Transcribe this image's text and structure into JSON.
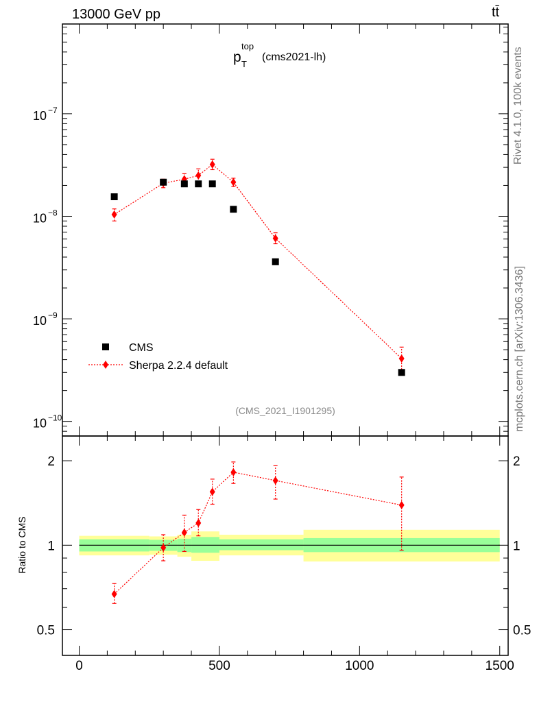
{
  "header": {
    "left": "13000 GeV pp",
    "right": "tt̄"
  },
  "side_labels": {
    "rivet": "Rivet 4.1.0,  100k events",
    "source": "mcplots.cern.ch [arXiv:1306.3436]"
  },
  "plot": {
    "title_main": "p",
    "title_sup": "top",
    "title_sub": "T",
    "title_rest": "(cms2021-lh)",
    "analysis": "(CMS_2021_I1901295)",
    "ratio_ylabel": "Ratio to CMS"
  },
  "legend": {
    "data": "CMS",
    "mc": "Sherpa 2.2.4 default"
  },
  "colors": {
    "mc": "#ff0000",
    "data": "#000000",
    "band_inner": "#99ff99",
    "band_outer": "#ffff99"
  },
  "chart_data": [
    {
      "type": "scatter",
      "scale": "log",
      "xlim": [
        -60,
        1530
      ],
      "ylim": [
        7.2e-11,
        7.5e-07
      ],
      "yticks": [
        1e-10,
        1e-09,
        1e-08,
        1e-07
      ],
      "ytick_labels": [
        {
          "base": "10",
          "exp": "−10"
        },
        {
          "base": "10",
          "exp": "−9"
        },
        {
          "base": "10",
          "exp": "−8"
        },
        {
          "base": "10",
          "exp": "−7"
        }
      ],
      "series": [
        {
          "name": "CMS",
          "marker": "square",
          "x": [
            125,
            300,
            375,
            425,
            475,
            550,
            700,
            1150
          ],
          "y": [
            1.55e-08,
            2.15e-08,
            2.07e-08,
            2.07e-08,
            2.07e-08,
            1.17e-08,
            3.6e-09,
            3e-10
          ]
        },
        {
          "name": "Sherpa 2.2.4 default",
          "marker": "diamond",
          "line": "dotted",
          "x": [
            125,
            300,
            375,
            425,
            475,
            550,
            700,
            1150
          ],
          "y": [
            1.04e-08,
            2.1e-08,
            2.3e-08,
            2.5e-08,
            3.2e-08,
            2.15e-08,
            6.1e-09,
            4.1e-10
          ],
          "err_lo": [
            9e-09,
            1.9e-08,
            2e-08,
            2.15e-08,
            2.85e-08,
            1.95e-08,
            5.4e-09,
            3.2e-10
          ],
          "err_hi": [
            1.18e-08,
            2.3e-08,
            2.6e-08,
            2.9e-08,
            3.6e-08,
            2.35e-08,
            6.9e-09,
            5.3e-10
          ]
        }
      ]
    },
    {
      "type": "scatter",
      "scale": "log",
      "xlim": [
        -60,
        1530
      ],
      "ylim": [
        0.405,
        2.45
      ],
      "yticks": [
        0.5,
        1,
        2
      ],
      "ytick_labels": [
        "0.5",
        "1",
        "2"
      ],
      "xticks": [
        0,
        500,
        1000,
        1500
      ],
      "xtick_labels": [
        "0",
        "500",
        "1000",
        "1500"
      ],
      "reference_line": 1,
      "bands": [
        {
          "x0": 0,
          "x1": 250,
          "inner": [
            0.95,
            1.05
          ],
          "outer": [
            0.92,
            1.08
          ]
        },
        {
          "x0": 250,
          "x1": 350,
          "inner": [
            0.955,
            1.045
          ],
          "outer": [
            0.925,
            1.075
          ]
        },
        {
          "x0": 350,
          "x1": 400,
          "inner": [
            0.945,
            1.055
          ],
          "outer": [
            0.91,
            1.09
          ]
        },
        {
          "x0": 400,
          "x1": 500,
          "inner": [
            0.94,
            1.07
          ],
          "outer": [
            0.88,
            1.12
          ]
        },
        {
          "x0": 500,
          "x1": 800,
          "inner": [
            0.96,
            1.05
          ],
          "outer": [
            0.92,
            1.09
          ]
        },
        {
          "x0": 800,
          "x1": 1500,
          "inner": [
            0.945,
            1.06
          ],
          "outer": [
            0.875,
            1.135
          ]
        }
      ],
      "series": [
        {
          "name": "Sherpa 2.2.4 default / CMS",
          "marker": "diamond",
          "line": "dotted",
          "x": [
            125,
            300,
            375,
            425,
            475,
            550,
            700,
            1150
          ],
          "y": [
            0.67,
            0.98,
            1.11,
            1.2,
            1.55,
            1.82,
            1.7,
            1.39
          ],
          "err_lo": [
            0.62,
            0.88,
            0.95,
            1.08,
            1.4,
            1.66,
            1.46,
            0.96
          ],
          "err_hi": [
            0.73,
            1.09,
            1.28,
            1.34,
            1.72,
            1.98,
            1.92,
            1.75
          ]
        }
      ]
    }
  ]
}
